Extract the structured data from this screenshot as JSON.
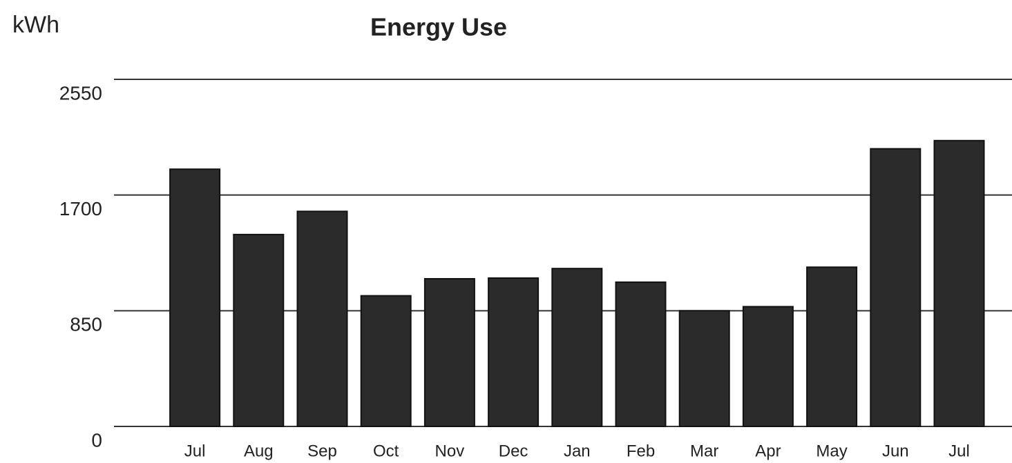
{
  "chart_data": {
    "type": "bar",
    "title": "Energy Use",
    "ylabel": "kWh",
    "categories": [
      "Jul",
      "Aug",
      "Sep",
      "Oct",
      "Nov",
      "Dec",
      "Jan",
      "Feb",
      "Mar",
      "Apr",
      "May",
      "Jun",
      "Jul"
    ],
    "values": [
      1890,
      1410,
      1580,
      960,
      1085,
      1090,
      1160,
      1060,
      850,
      880,
      1170,
      2040,
      2100
    ],
    "color": "#2b2b2b",
    "ylim": [
      0,
      2550
    ],
    "yticks": [
      0,
      850,
      1700,
      2550
    ],
    "grid": true
  }
}
